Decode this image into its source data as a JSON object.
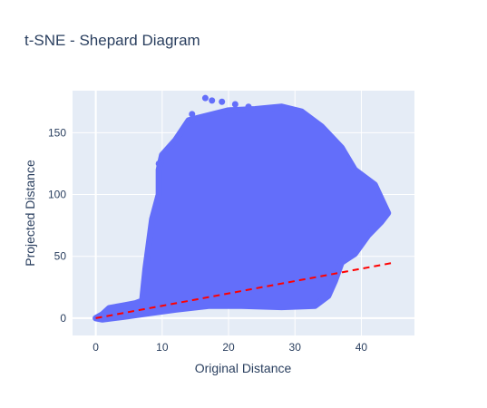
{
  "chart_data": {
    "type": "scatter",
    "title": "t-SNE - Shepard Diagram",
    "xlabel": "Original Distance",
    "ylabel": "Projected Distance",
    "xlim": [
      -3.5,
      48
    ],
    "ylim": [
      -14,
      184
    ],
    "x_ticks": [
      0,
      10,
      20,
      30,
      40
    ],
    "y_ticks": [
      0,
      50,
      100,
      150
    ],
    "grid": true,
    "legend": "none",
    "colors": {
      "points": "#636efa",
      "reference_line": "#ff0000",
      "plot_background": "#e5ecf6",
      "grid": "#ffffff"
    },
    "series": [
      {
        "type": "scatter-cloud",
        "outline": [
          [
            0,
            0
          ],
          [
            1,
            3
          ],
          [
            2,
            8
          ],
          [
            4,
            10
          ],
          [
            6,
            12
          ],
          [
            7,
            14
          ],
          [
            7.5,
            40
          ],
          [
            8,
            60
          ],
          [
            8.5,
            80
          ],
          [
            9.5,
            100
          ],
          [
            9.5,
            120
          ],
          [
            10,
            132
          ],
          [
            12,
            144
          ],
          [
            14,
            160
          ],
          [
            17,
            164
          ],
          [
            20,
            168
          ],
          [
            24,
            169
          ],
          [
            28,
            171
          ],
          [
            31,
            167
          ],
          [
            34,
            155
          ],
          [
            37,
            138
          ],
          [
            39,
            120
          ],
          [
            42,
            108
          ],
          [
            44,
            85
          ],
          [
            43,
            78
          ],
          [
            41,
            67
          ],
          [
            39,
            52
          ],
          [
            37,
            45
          ],
          [
            36,
            30
          ],
          [
            35,
            18
          ],
          [
            33,
            10
          ],
          [
            28,
            9
          ],
          [
            22,
            10
          ],
          [
            17,
            10
          ],
          [
            12,
            7
          ],
          [
            8,
            4
          ],
          [
            4,
            1
          ],
          [
            1,
            -1
          ]
        ]
      },
      {
        "type": "line",
        "style": "dashed",
        "x": [
          0,
          44.5
        ],
        "y": [
          0,
          44.5
        ]
      }
    ]
  }
}
